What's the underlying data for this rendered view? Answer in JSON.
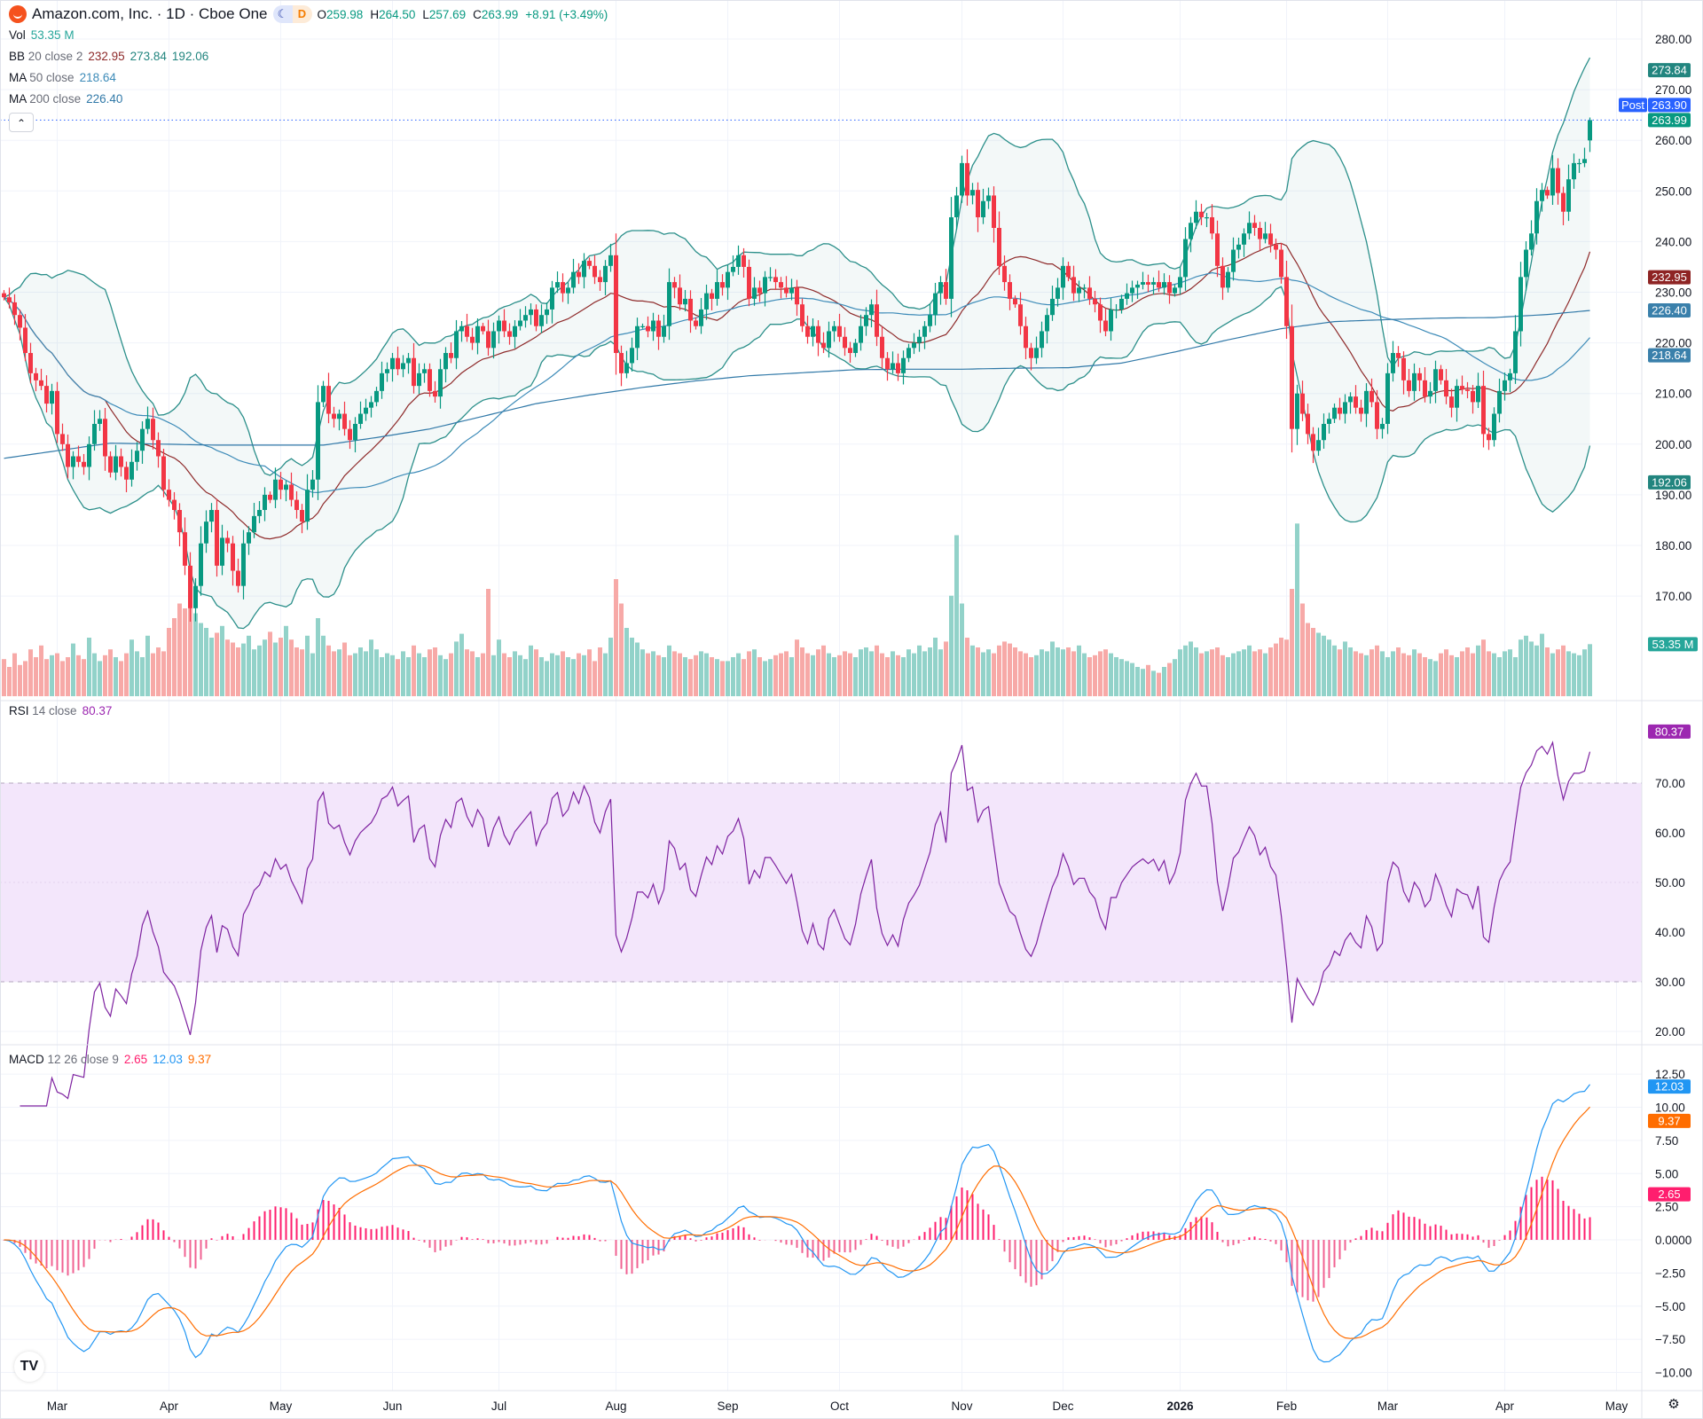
{
  "header": {
    "title": "Amazon.com, Inc. · 1D · Cboe One",
    "market_status_icon": "moon-icon",
    "data_badge": "D",
    "o_label": "O",
    "o": "259.98",
    "h_label": "H",
    "h": "264.50",
    "l_label": "L",
    "l": "257.69",
    "c_label": "C",
    "c": "263.99",
    "change": "+8.91 (+3.49%)"
  },
  "legend": {
    "vol": {
      "label": "Vol",
      "value": "53.35 M"
    },
    "bb": {
      "label": "BB",
      "params": "20 close 2",
      "basis": "232.95",
      "upper": "273.84",
      "lower": "192.06"
    },
    "ma50": {
      "label": "MA",
      "params": "50 close",
      "value": "218.64"
    },
    "ma200": {
      "label": "MA",
      "params": "200 close",
      "value": "226.40"
    },
    "rsi": {
      "label": "RSI",
      "params": "14 close",
      "value": "80.37"
    },
    "macd": {
      "label": "MACD",
      "params": "12 26 close 9",
      "histogram": "2.65",
      "macd": "12.03",
      "signal": "9.37"
    },
    "collapse_icon": "chevron-up-icon"
  },
  "badges": {
    "bb_upper": "273.84",
    "last": "263.99",
    "post_label": "Post",
    "post": "263.90",
    "bb_basis": "232.95",
    "ma200": "226.40",
    "ma50": "218.64",
    "bb_lower": "192.06",
    "volume": "53.35 M",
    "rsi": "80.37",
    "macd": "12.03",
    "signal": "9.37",
    "histogram": "2.65"
  },
  "colors": {
    "up": "#089981",
    "down": "#f23645",
    "vol_up": "#92d2c9",
    "vol_down": "#f7a9a7",
    "bb_band": "#2b8f8a",
    "bb_basis": "#8e2a2a",
    "ma50": "#3d8bb8",
    "ma200": "#3179a8",
    "rsi": "#7e22a0",
    "rsi_fill": "#f3e6fb",
    "macd": "#2196f3",
    "signal": "#ff6d00",
    "histogram": "#ff1e6e",
    "post": "#2962ff"
  },
  "chart_data": {
    "type": "candlestick",
    "symbol": "Amazon.com, Inc.",
    "interval": "1D",
    "x_axis_labels": [
      "Mar",
      "Apr",
      "May",
      "Jun",
      "Jul",
      "Aug",
      "Sep",
      "Oct",
      "Nov",
      "Dec",
      "2026",
      "Feb",
      "Mar",
      "Apr",
      "May"
    ],
    "price_ticks": [
      "280.00",
      "270.00",
      "260.00",
      "250.00",
      "240.00",
      "230.00",
      "220.00",
      "210.00",
      "200.00",
      "190.00",
      "180.00",
      "170.00"
    ],
    "rsi_ticks": [
      "70.00",
      "60.00",
      "50.00",
      "40.00",
      "30.00",
      "20.00"
    ],
    "macd_ticks": [
      "12.50",
      "10.00",
      "7.50",
      "5.00",
      "2.50",
      "0.0000",
      "−2.50",
      "−5.00",
      "−7.50",
      "−10.00"
    ],
    "price_range": [
      165,
      283
    ],
    "rsi_levels": [
      30,
      70
    ],
    "last_bar": {
      "open": 259.98,
      "high": 264.5,
      "low": 257.69,
      "close": 263.99
    },
    "close": [
      229,
      228,
      225.5,
      223,
      218,
      214,
      212.6,
      211.5,
      208,
      210.5,
      202,
      200,
      195.5,
      197.6,
      196.5,
      195.5,
      200,
      204,
      205,
      197.6,
      194.4,
      197.6,
      195.5,
      193,
      196.5,
      198.7,
      203,
      205,
      200.8,
      197.6,
      191,
      189,
      187,
      182.6,
      176,
      167.6,
      172,
      180.4,
      184.7,
      187,
      176,
      181.5,
      180.4,
      175,
      172,
      180.4,
      182.6,
      185.8,
      187,
      190,
      189,
      193,
      191,
      192,
      189,
      187,
      184.7,
      191,
      193,
      208.3,
      211.5,
      206,
      205,
      206,
      203,
      200.8,
      204,
      206,
      207.2,
      208.3,
      210.5,
      214,
      214.8,
      217,
      214.8,
      216,
      217,
      211.5,
      214,
      214.8,
      210.5,
      209.4,
      214.8,
      218,
      217,
      222.3,
      223.3,
      221.2,
      220,
      223.3,
      222.3,
      219,
      222.3,
      224.4,
      222.3,
      221.2,
      223.3,
      224.4,
      225.5,
      226.6,
      223.3,
      225.5,
      226.6,
      230.9,
      232,
      229.8,
      230.9,
      234,
      233,
      236.2,
      235.2,
      233,
      232,
      235.2,
      237.3,
      218,
      214,
      216,
      219,
      223.3,
      223.3,
      222.3,
      224.4,
      221.2,
      223.3,
      232,
      230.9,
      227.6,
      228.7,
      224.4,
      223.3,
      226.6,
      229.8,
      228.7,
      232,
      230.9,
      234,
      235,
      237.3,
      235,
      228.7,
      230.9,
      229.8,
      233,
      233,
      232,
      230.9,
      229.8,
      230.9,
      227.6,
      223.3,
      221.2,
      223.3,
      220,
      219,
      222.3,
      223.3,
      221.2,
      219,
      218,
      220,
      223.3,
      225.5,
      227.6,
      221.2,
      217,
      214.8,
      216,
      214,
      217,
      219,
      220,
      221.2,
      223.3,
      225.5,
      229.8,
      232,
      228.7,
      244.8,
      249.1,
      255.5,
      249.1,
      250.2,
      244.8,
      248,
      249.1,
      242.7,
      235.2,
      232,
      228.7,
      227.6,
      223.3,
      219,
      217,
      219,
      222.3,
      225.5,
      228.7,
      230.9,
      235.2,
      233,
      229.8,
      230.9,
      230.9,
      228.7,
      227.6,
      224.4,
      222.3,
      226.6,
      226.6,
      228.7,
      229.8,
      230.9,
      231.5,
      232,
      231.5,
      232,
      230.9,
      232,
      229.8,
      230.9,
      233,
      240.5,
      243.7,
      245.9,
      244.8,
      244.8,
      241.6,
      235.2,
      230.9,
      234,
      238.4,
      239.4,
      241.6,
      243.7,
      242.7,
      240.5,
      241.6,
      239.4,
      238.4,
      233,
      223.3,
      203,
      210,
      206,
      202,
      198.7,
      200.8,
      204,
      205,
      207.2,
      206,
      208.3,
      209.4,
      207.2,
      206,
      210.5,
      208.3,
      203,
      204,
      214,
      218,
      217,
      212.6,
      210.5,
      214,
      212.6,
      209.4,
      210.5,
      214.8,
      212.6,
      209.4,
      207.2,
      211.5,
      210.8,
      210.5,
      208.3,
      211.5,
      202,
      200.8,
      206,
      210.5,
      212.6,
      214,
      222.3,
      233,
      238.4,
      241.6,
      248,
      250.2,
      249.1,
      254.5,
      249.6,
      245.9,
      252.3,
      255.5,
      255.5,
      256.3,
      263.99
    ],
    "volume_millions": [
      38,
      30,
      44,
      32,
      36,
      48,
      40,
      52,
      38,
      42,
      44,
      36,
      40,
      54,
      42,
      38,
      60,
      44,
      36,
      42,
      48,
      40,
      36,
      44,
      58,
      46,
      40,
      62,
      44,
      50,
      46,
      70,
      80,
      95,
      90,
      95,
      85,
      75,
      70,
      60,
      65,
      72,
      58,
      55,
      50,
      54,
      62,
      48,
      52,
      58,
      66,
      55,
      60,
      72,
      58,
      50,
      48,
      62,
      44,
      80,
      62,
      52,
      46,
      48,
      55,
      42,
      44,
      50,
      46,
      58,
      48,
      40,
      44,
      42,
      38,
      46,
      40,
      52,
      44,
      40,
      48,
      50,
      42,
      38,
      44,
      56,
      64,
      48,
      46,
      40,
      44,
      110,
      42,
      58,
      44,
      40,
      46,
      42,
      38,
      52,
      48,
      40,
      36,
      44,
      42,
      46,
      40,
      38,
      44,
      42,
      48,
      36,
      50,
      44,
      60,
      120,
      95,
      70,
      60,
      55,
      48,
      44,
      46,
      42,
      40,
      52,
      46,
      44,
      40,
      38,
      42,
      46,
      44,
      40,
      38,
      36,
      36,
      40,
      44,
      38,
      46,
      48,
      40,
      36,
      38,
      42,
      44,
      46,
      40,
      58,
      50,
      44,
      42,
      48,
      52,
      44,
      40,
      42,
      46,
      44,
      40,
      48,
      50,
      46,
      52,
      44,
      40,
      46,
      42,
      40,
      48,
      44,
      52,
      46,
      50,
      60,
      48,
      56,
      103,
      165,
      95,
      60,
      52,
      50,
      45,
      48,
      44,
      52,
      56,
      54,
      50,
      46,
      44,
      40,
      42,
      48,
      46,
      56,
      50,
      48,
      50,
      46,
      52,
      44,
      40,
      42,
      46,
      48,
      44,
      40,
      38,
      36,
      34,
      30,
      28,
      32,
      26,
      24,
      30,
      34,
      38,
      48,
      52,
      56,
      50,
      44,
      46,
      48,
      50,
      42,
      40,
      44,
      46,
      48,
      52,
      46,
      48,
      44,
      50,
      54,
      60,
      58,
      110,
      177,
      95,
      75,
      70,
      65,
      62,
      58,
      52,
      48,
      56,
      50,
      46,
      44,
      42,
      48,
      52,
      46,
      40,
      46,
      50,
      44,
      42,
      48,
      44,
      40,
      38,
      36,
      44,
      48,
      42,
      40,
      46,
      50,
      44,
      52,
      58,
      46,
      44,
      40,
      46,
      48,
      40,
      58,
      62,
      56,
      52,
      64,
      50,
      44,
      48,
      52,
      46,
      44,
      42,
      48,
      53.35
    ],
    "ma200_samples": [
      197.2,
      198.7,
      200.2,
      200,
      199.8,
      199.8,
      199.8,
      201.3,
      203,
      205.5,
      208,
      209.7,
      211.2,
      212.5,
      213.5,
      214.1,
      214.7,
      214.8,
      214.8,
      215,
      215.1,
      216,
      218.2,
      220.6,
      222.8,
      224.2,
      224.6,
      224.9,
      225,
      225.6,
      226.4
    ]
  }
}
